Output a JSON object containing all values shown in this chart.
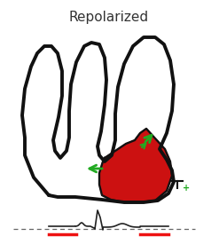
{
  "title": "Repolarized",
  "title_fontsize": 11,
  "title_color": "#333333",
  "bg_color": "#ffffff",
  "hand_color": "#111111",
  "hand_lw": 2.8,
  "red_fill": "#cc1111",
  "green_arrow_color": "#22aa22",
  "dashed_line_color": "#666666",
  "red_baseline_color": "#ee1111",
  "ekg_color": "#222222"
}
